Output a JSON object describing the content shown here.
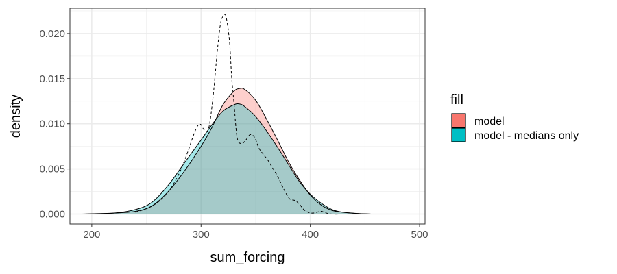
{
  "chart_data": {
    "type": "area",
    "title": "",
    "xlabel": "sum_forcing",
    "ylabel": "density",
    "xlim": [
      180,
      505
    ],
    "ylim": [
      -0.0011,
      0.0228
    ],
    "x_ticks": [
      200,
      300,
      400,
      500
    ],
    "x_tick_labels": [
      "200",
      "300",
      "400",
      "500"
    ],
    "y_ticks": [
      0.0,
      0.005,
      0.01,
      0.015,
      0.02
    ],
    "y_tick_labels": [
      "0.000",
      "0.005",
      "0.010",
      "0.015",
      "0.020"
    ],
    "grid": true,
    "legend": {
      "title": "fill",
      "position": "right"
    },
    "series": [
      {
        "name": "model",
        "fill": "#F8766D",
        "x": [
          191,
          220,
          240,
          255,
          270,
          285,
          300,
          310,
          320,
          330,
          335,
          340,
          350,
          360,
          370,
          380,
          390,
          400,
          410,
          420,
          430,
          445,
          460,
          490
        ],
        "y": [
          0.0,
          0.0001,
          0.0003,
          0.0009,
          0.0025,
          0.0048,
          0.0075,
          0.0096,
          0.0121,
          0.0136,
          0.0139,
          0.0138,
          0.0126,
          0.0105,
          0.0082,
          0.0058,
          0.0038,
          0.0021,
          0.001,
          0.0004,
          0.0002,
          5e-05,
          0.0,
          0.0
        ]
      },
      {
        "name": "model - medians only",
        "fill": "#00BFC4",
        "x": [
          191,
          220,
          240,
          255,
          270,
          285,
          300,
          310,
          320,
          330,
          335,
          340,
          350,
          360,
          370,
          380,
          390,
          400,
          410,
          420,
          430,
          445,
          460,
          490
        ],
        "y": [
          0.0,
          0.0001,
          0.0005,
          0.0013,
          0.0032,
          0.0057,
          0.0082,
          0.0099,
          0.0114,
          0.0121,
          0.0122,
          0.0119,
          0.0108,
          0.0092,
          0.0074,
          0.0055,
          0.0036,
          0.0022,
          0.0012,
          0.0005,
          0.0002,
          5e-05,
          0.0,
          0.0
        ]
      },
      {
        "name": "",
        "line": "dashed",
        "x": [
          240,
          250,
          258,
          265,
          272,
          280,
          287,
          293,
          297,
          300,
          303,
          307,
          311,
          315,
          318,
          321,
          323,
          326,
          328,
          330,
          333,
          337,
          341,
          345,
          349,
          353,
          357,
          361,
          365,
          370,
          376,
          381,
          386,
          390,
          394,
          398,
          402,
          406,
          410,
          415,
          420,
          430
        ],
        "y": [
          0.0002,
          0.0006,
          0.0011,
          0.0018,
          0.0028,
          0.0045,
          0.0066,
          0.0087,
          0.0098,
          0.0099,
          0.0093,
          0.0095,
          0.013,
          0.0182,
          0.0212,
          0.022,
          0.0218,
          0.0192,
          0.0152,
          0.0125,
          0.0085,
          0.0078,
          0.0082,
          0.0088,
          0.0085,
          0.0073,
          0.0066,
          0.006,
          0.0052,
          0.0042,
          0.0027,
          0.0017,
          0.0015,
          0.0011,
          0.0005,
          0.0002,
          0.0001,
          0.0002,
          0.0003,
          0.0001,
          0.0,
          0.0
        ]
      }
    ]
  }
}
